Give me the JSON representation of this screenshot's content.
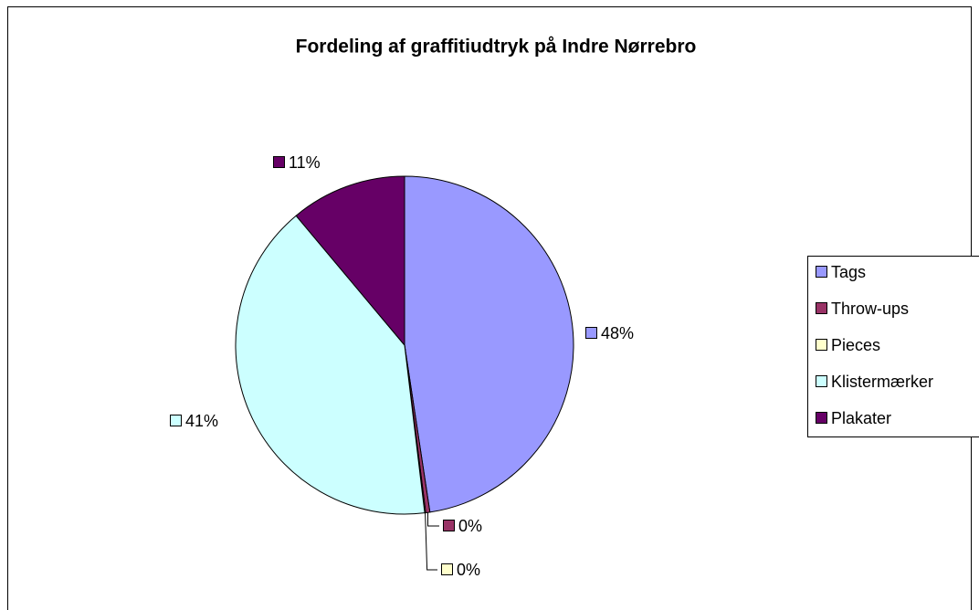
{
  "chart_data": {
    "type": "pie",
    "title": "Fordeling af graffitiudtryk på Indre Nørrebro",
    "categories": [
      "Tags",
      "Throw-ups",
      "Pieces",
      "Klistermærker",
      "Plakater"
    ],
    "values": [
      47.6,
      0.4,
      0.1,
      40.8,
      11.1
    ],
    "value_labels": [
      "48%",
      "0%",
      "0%",
      "41%",
      "11%"
    ],
    "colors": [
      "#9999ff",
      "#993366",
      "#ffffcc",
      "#ccffff",
      "#660066"
    ],
    "legend": "right"
  }
}
